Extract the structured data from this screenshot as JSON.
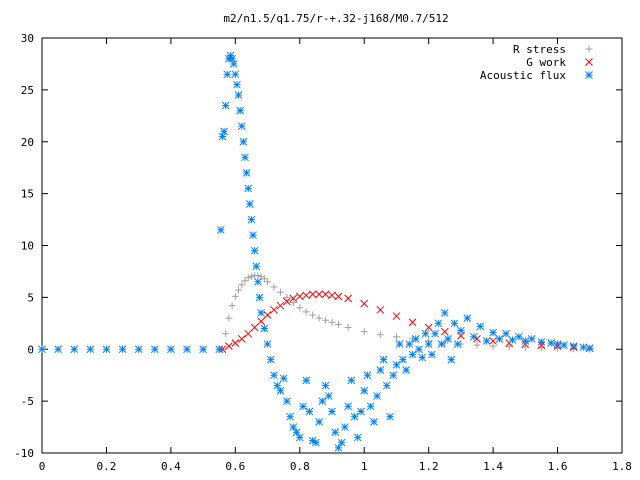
{
  "chart_data": {
    "type": "scatter",
    "title": "m2/n1.5/q1.75/r-+.32-j168/M0.7/512",
    "xlabel": "",
    "ylabel": "",
    "xlim": [
      0,
      1.8
    ],
    "ylim": [
      -10,
      30
    ],
    "xticks": [
      0,
      0.2,
      0.4,
      0.6,
      0.8,
      1,
      1.2,
      1.4,
      1.6,
      1.8
    ],
    "xtick_labels": [
      "0",
      "0.2",
      "0.4",
      "0.6",
      "0.8",
      "1",
      "1.2",
      "1.4",
      "1.6",
      "1.8"
    ],
    "yticks": [
      -10,
      -5,
      0,
      5,
      10,
      15,
      20,
      25,
      30
    ],
    "ytick_labels": [
      "-10",
      "-5",
      "0",
      "5",
      "10",
      "15",
      "20",
      "25",
      "30"
    ],
    "grid": false,
    "legend_position": "top-right",
    "series": [
      {
        "name": "R stress",
        "marker": "plus",
        "color": "#a0a0a0",
        "points": [
          [
            0.56,
            0.0
          ],
          [
            0.57,
            1.5
          ],
          [
            0.58,
            3.0
          ],
          [
            0.59,
            4.2
          ],
          [
            0.6,
            5.1
          ],
          [
            0.61,
            5.7
          ],
          [
            0.62,
            6.2
          ],
          [
            0.63,
            6.6
          ],
          [
            0.64,
            6.9
          ],
          [
            0.65,
            7.0
          ],
          [
            0.66,
            7.1
          ],
          [
            0.67,
            7.1
          ],
          [
            0.68,
            7.0
          ],
          [
            0.69,
            6.8
          ],
          [
            0.7,
            6.5
          ],
          [
            0.72,
            6.0
          ],
          [
            0.74,
            5.5
          ],
          [
            0.76,
            5.0
          ],
          [
            0.78,
            4.5
          ],
          [
            0.8,
            4.0
          ],
          [
            0.82,
            3.6
          ],
          [
            0.84,
            3.3
          ],
          [
            0.86,
            3.0
          ],
          [
            0.88,
            2.8
          ],
          [
            0.9,
            2.6
          ],
          [
            0.92,
            2.4
          ],
          [
            0.95,
            2.1
          ],
          [
            1.0,
            1.7
          ],
          [
            1.05,
            1.4
          ],
          [
            1.1,
            1.2
          ],
          [
            1.15,
            1.0
          ],
          [
            1.2,
            0.8
          ],
          [
            1.25,
            0.6
          ],
          [
            1.3,
            0.5
          ],
          [
            1.35,
            0.4
          ],
          [
            1.4,
            0.3
          ],
          [
            1.45,
            0.25
          ],
          [
            1.5,
            0.2
          ],
          [
            1.55,
            0.15
          ],
          [
            1.6,
            0.1
          ],
          [
            1.65,
            0.05
          ],
          [
            1.7,
            0.0
          ]
        ]
      },
      {
        "name": "G work",
        "marker": "cross",
        "color": "#ff0000",
        "points": [
          [
            0.56,
            0.0
          ],
          [
            0.58,
            0.3
          ],
          [
            0.6,
            0.6
          ],
          [
            0.62,
            1.0
          ],
          [
            0.64,
            1.5
          ],
          [
            0.66,
            2.1
          ],
          [
            0.68,
            2.7
          ],
          [
            0.7,
            3.3
          ],
          [
            0.72,
            3.8
          ],
          [
            0.74,
            4.2
          ],
          [
            0.76,
            4.6
          ],
          [
            0.78,
            4.9
          ],
          [
            0.8,
            5.1
          ],
          [
            0.82,
            5.2
          ],
          [
            0.84,
            5.3
          ],
          [
            0.86,
            5.3
          ],
          [
            0.88,
            5.3
          ],
          [
            0.9,
            5.2
          ],
          [
            0.92,
            5.1
          ],
          [
            0.95,
            4.9
          ],
          [
            1.0,
            4.4
          ],
          [
            1.05,
            3.8
          ],
          [
            1.1,
            3.2
          ],
          [
            1.15,
            2.6
          ],
          [
            1.2,
            2.1
          ],
          [
            1.25,
            1.7
          ],
          [
            1.3,
            1.3
          ],
          [
            1.35,
            1.0
          ],
          [
            1.4,
            0.8
          ],
          [
            1.45,
            0.6
          ],
          [
            1.5,
            0.5
          ],
          [
            1.55,
            0.4
          ],
          [
            1.6,
            0.3
          ],
          [
            1.65,
            0.2
          ],
          [
            1.7,
            0.1
          ]
        ]
      },
      {
        "name": "Acoustic flux",
        "marker": "star",
        "color": "#0080ff",
        "points": [
          [
            0.0,
            0.0
          ],
          [
            0.05,
            0.0
          ],
          [
            0.1,
            0.0
          ],
          [
            0.15,
            0.0
          ],
          [
            0.2,
            0.0
          ],
          [
            0.25,
            0.0
          ],
          [
            0.3,
            0.0
          ],
          [
            0.35,
            0.0
          ],
          [
            0.4,
            0.0
          ],
          [
            0.45,
            0.0
          ],
          [
            0.5,
            0.0
          ],
          [
            0.55,
            0.0
          ],
          [
            0.555,
            11.5
          ],
          [
            0.56,
            20.5
          ],
          [
            0.565,
            21.0
          ],
          [
            0.57,
            23.5
          ],
          [
            0.575,
            26.5
          ],
          [
            0.58,
            28.0
          ],
          [
            0.585,
            28.3
          ],
          [
            0.59,
            28.0
          ],
          [
            0.595,
            27.5
          ],
          [
            0.6,
            26.5
          ],
          [
            0.605,
            25.5
          ],
          [
            0.61,
            24.5
          ],
          [
            0.615,
            23.0
          ],
          [
            0.62,
            21.5
          ],
          [
            0.625,
            20.0
          ],
          [
            0.63,
            18.5
          ],
          [
            0.635,
            17.0
          ],
          [
            0.64,
            15.5
          ],
          [
            0.645,
            14.0
          ],
          [
            0.65,
            12.5
          ],
          [
            0.655,
            11.0
          ],
          [
            0.66,
            9.5
          ],
          [
            0.665,
            8.0
          ],
          [
            0.67,
            6.5
          ],
          [
            0.675,
            5.0
          ],
          [
            0.68,
            3.5
          ],
          [
            0.69,
            2.0
          ],
          [
            0.7,
            0.5
          ],
          [
            0.71,
            -1.0
          ],
          [
            0.72,
            -2.5
          ],
          [
            0.73,
            -3.5
          ],
          [
            0.74,
            -4.0
          ],
          [
            0.75,
            -2.8
          ],
          [
            0.76,
            -5.0
          ],
          [
            0.77,
            -6.5
          ],
          [
            0.78,
            -7.5
          ],
          [
            0.79,
            -8.0
          ],
          [
            0.8,
            -8.5
          ],
          [
            0.81,
            -5.5
          ],
          [
            0.82,
            -3.0
          ],
          [
            0.83,
            -6.0
          ],
          [
            0.84,
            -8.8
          ],
          [
            0.85,
            -9.0
          ],
          [
            0.86,
            -7.0
          ],
          [
            0.87,
            -5.0
          ],
          [
            0.88,
            -3.5
          ],
          [
            0.89,
            -4.5
          ],
          [
            0.9,
            -6.0
          ],
          [
            0.91,
            -8.0
          ],
          [
            0.92,
            -9.5
          ],
          [
            0.93,
            -9.0
          ],
          [
            0.94,
            -7.5
          ],
          [
            0.95,
            -5.5
          ],
          [
            0.96,
            -3.0
          ],
          [
            0.97,
            -6.5
          ],
          [
            0.98,
            -8.5
          ],
          [
            0.99,
            -6.0
          ],
          [
            1.0,
            -4.0
          ],
          [
            1.01,
            -2.5
          ],
          [
            1.02,
            -5.5
          ],
          [
            1.03,
            -7.0
          ],
          [
            1.04,
            -4.5
          ],
          [
            1.05,
            -2.0
          ],
          [
            1.06,
            -1.0
          ],
          [
            1.07,
            -3.5
          ],
          [
            1.08,
            -6.5
          ],
          [
            1.09,
            -2.5
          ],
          [
            1.1,
            -1.5
          ],
          [
            1.11,
            0.5
          ],
          [
            1.12,
            -1.0
          ],
          [
            1.13,
            -2.0
          ],
          [
            1.14,
            0.5
          ],
          [
            1.15,
            -0.5
          ],
          [
            1.16,
            1.0
          ],
          [
            1.17,
            0.0
          ],
          [
            1.18,
            -0.8
          ],
          [
            1.19,
            1.5
          ],
          [
            1.2,
            0.5
          ],
          [
            1.21,
            -0.5
          ],
          [
            1.22,
            1.5
          ],
          [
            1.23,
            2.5
          ],
          [
            1.24,
            0.5
          ],
          [
            1.25,
            3.5
          ],
          [
            1.26,
            1.0
          ],
          [
            1.27,
            -1.0
          ],
          [
            1.28,
            2.5
          ],
          [
            1.29,
            0.5
          ],
          [
            1.3,
            1.8
          ],
          [
            1.32,
            3.0
          ],
          [
            1.34,
            1.2
          ],
          [
            1.36,
            2.2
          ],
          [
            1.38,
            0.8
          ],
          [
            1.4,
            1.6
          ],
          [
            1.42,
            1.0
          ],
          [
            1.44,
            1.5
          ],
          [
            1.46,
            0.9
          ],
          [
            1.48,
            1.2
          ],
          [
            1.5,
            0.8
          ],
          [
            1.52,
            1.0
          ],
          [
            1.55,
            0.7
          ],
          [
            1.58,
            0.6
          ],
          [
            1.6,
            0.5
          ],
          [
            1.62,
            0.4
          ],
          [
            1.65,
            0.3
          ],
          [
            1.68,
            0.2
          ],
          [
            1.7,
            0.1
          ]
        ]
      }
    ]
  }
}
